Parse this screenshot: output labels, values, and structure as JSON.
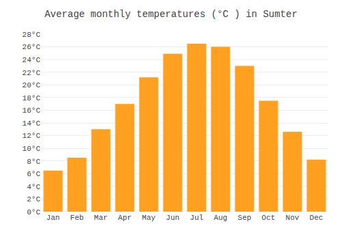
{
  "chart_data": {
    "type": "bar",
    "title": "Average monthly temperatures (°C ) in Sumter",
    "categories": [
      "Jan",
      "Feb",
      "Mar",
      "Apr",
      "May",
      "Jun",
      "Jul",
      "Aug",
      "Sep",
      "Oct",
      "Nov",
      "Dec"
    ],
    "values": [
      6.5,
      8.5,
      13.0,
      17.0,
      21.2,
      24.9,
      26.5,
      26.0,
      23.0,
      17.5,
      12.6,
      8.2
    ],
    "color": "#FFA020",
    "ylim": [
      0,
      28
    ],
    "yticks": [
      {
        "value": 0,
        "label": "0°C"
      },
      {
        "value": 2,
        "label": "2°C"
      },
      {
        "value": 4,
        "label": "4°C"
      },
      {
        "value": 6,
        "label": "6°C"
      },
      {
        "value": 8,
        "label": "8°C"
      },
      {
        "value": 10,
        "label": "10°C"
      },
      {
        "value": 12,
        "label": "12°C"
      },
      {
        "value": 14,
        "label": "14°C"
      },
      {
        "value": 16,
        "label": "16°C"
      },
      {
        "value": 18,
        "label": "18°C"
      },
      {
        "value": 20,
        "label": "20°C"
      },
      {
        "value": 22,
        "label": "22°C"
      },
      {
        "value": 24,
        "label": "24°C"
      },
      {
        "value": 26,
        "label": "26°C"
      },
      {
        "value": 28,
        "label": "28°C"
      }
    ],
    "grid": true
  }
}
